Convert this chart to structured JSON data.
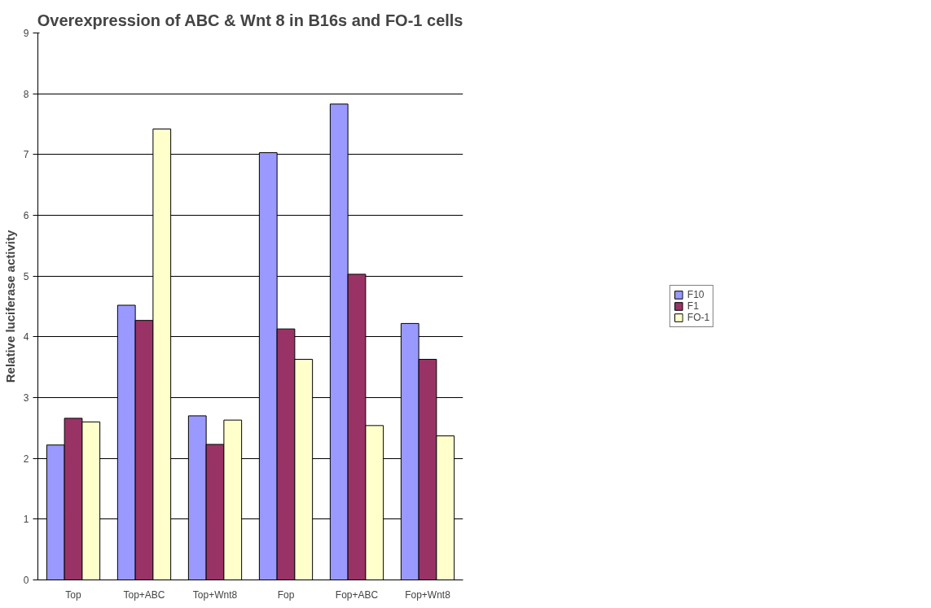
{
  "chart_data": {
    "type": "bar",
    "title": "Overexpression of ABC & Wnt 8 in B16s and FO-1 cells",
    "ylabel": "Relative luciferase activity",
    "categories": [
      "Top",
      "Top+ABC",
      "Top+Wnt8",
      "Fop",
      "Fop+ABC",
      "Fop+Wnt8"
    ],
    "series": [
      {
        "name": "F10",
        "color": "#9999ff",
        "values": [
          2.22,
          4.52,
          2.7,
          7.03,
          7.83,
          4.22
        ]
      },
      {
        "name": "F1",
        "color": "#993366",
        "values": [
          2.66,
          4.27,
          2.23,
          4.13,
          5.03,
          3.63
        ]
      },
      {
        "name": "FO-1",
        "color": "#ffffcc",
        "values": [
          2.6,
          7.42,
          2.63,
          3.63,
          2.54,
          2.37
        ]
      }
    ],
    "ylim": [
      0,
      9
    ],
    "yticks": [
      0,
      1,
      2,
      3,
      4,
      5,
      6,
      7,
      8,
      9
    ],
    "grid": "y",
    "legend": "right"
  }
}
